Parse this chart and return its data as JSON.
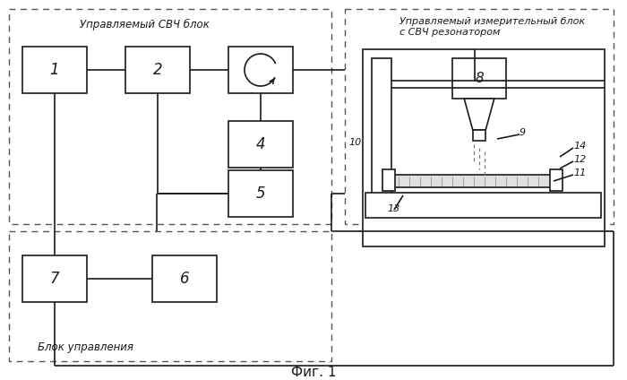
{
  "title": "Фиг. 1",
  "label_svch": "Управляемый СВЧ блок",
  "label_meas": "Управляемый измерительный блок\nс СВЧ резонатором",
  "label_ctrl": "Блок управления",
  "bg_color": "#ffffff",
  "lc": "#1a1a1a",
  "dc": "#555555"
}
